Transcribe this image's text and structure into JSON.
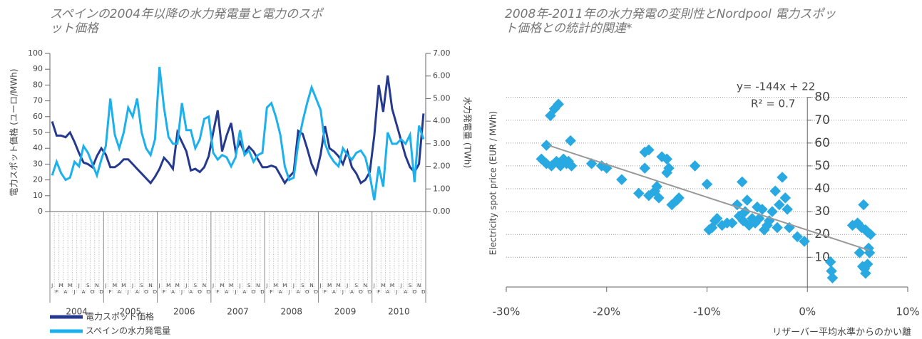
{
  "chart_data": [
    {
      "type": "line",
      "title": "スペインの2004年以降の水力発電量と電力のスポット価格",
      "ylabel": "電力スポット価格 (ユーロ/MWh)",
      "y2label": "水力発電量 (TWh)",
      "categories": [
        "J",
        "F",
        "M",
        "A",
        "M",
        "J",
        "J",
        "A",
        "S",
        "O",
        "N",
        "D",
        "J",
        "F",
        "M",
        "A",
        "M",
        "J",
        "J",
        "A",
        "S",
        "O",
        "N",
        "D",
        "J",
        "F",
        "M",
        "A",
        "M",
        "J",
        "J",
        "A",
        "S",
        "O",
        "N",
        "D",
        "J",
        "F",
        "M",
        "A",
        "M",
        "J",
        "J",
        "A",
        "S",
        "O",
        "N",
        "D",
        "J",
        "F",
        "M",
        "A",
        "M",
        "J",
        "J",
        "A",
        "S",
        "O",
        "N",
        "D",
        "J",
        "F",
        "M",
        "A",
        "M",
        "J",
        "J",
        "A",
        "S",
        "O",
        "N",
        "D",
        "J",
        "F",
        "M",
        "A",
        "M",
        "J",
        "J",
        "A",
        "S",
        "O",
        "N",
        "D"
      ],
      "years": [
        "2004",
        "2005",
        "2006",
        "2007",
        "2008",
        "2009",
        "2010"
      ],
      "ylim": [
        0,
        100
      ],
      "yticks": [
        0,
        10,
        20,
        30,
        40,
        50,
        60,
        70,
        80,
        90,
        100
      ],
      "y2lim": [
        0,
        7
      ],
      "y2ticks": [
        {
          "value": 0,
          "label": "0.00"
        },
        {
          "value": 1,
          "label": "1.00"
        },
        {
          "value": 2,
          "label": "2.00"
        },
        {
          "value": 3,
          "label": "3.00"
        },
        {
          "value": 4,
          "label": "4.00"
        },
        {
          "value": 5,
          "label": "5.00"
        },
        {
          "value": 6,
          "label": "6.00"
        },
        {
          "value": 7,
          "label": "7.00"
        }
      ],
      "series": [
        {
          "name": "電力スポット価格",
          "color": "#253a8e",
          "axis": "y",
          "values": [
            57,
            48,
            48,
            47,
            50,
            44,
            37,
            31,
            30,
            28,
            35,
            40,
            36,
            28,
            28,
            30,
            33,
            33,
            30,
            27,
            24,
            21,
            18,
            22,
            27,
            34,
            31,
            27,
            50,
            44,
            38,
            26,
            27,
            25,
            28,
            35,
            50,
            64,
            38,
            48,
            56,
            38,
            44,
            37,
            41,
            38,
            33,
            28,
            28,
            29,
            28,
            23,
            18,
            22,
            25,
            51,
            49,
            40,
            30,
            24,
            36,
            54,
            40,
            38,
            35,
            30,
            38,
            28,
            24,
            18,
            20,
            25,
            48,
            80,
            63,
            86,
            65,
            55,
            45,
            35,
            28,
            25,
            30,
            62
          ]
        },
        {
          "name": "スペインの水力発電量",
          "color": "#1cb0ec",
          "axis": "y2",
          "values": [
            1.6,
            2.2,
            1.7,
            1.4,
            1.5,
            2.2,
            2.0,
            2.9,
            2.6,
            2.1,
            1.6,
            2.3,
            2.9,
            5.0,
            3.4,
            2.8,
            3.5,
            4.6,
            4.2,
            5.0,
            3.5,
            2.8,
            2.5,
            3.2,
            6.4,
            4.6,
            3.3,
            3.0,
            3.0,
            4.8,
            3.6,
            3.6,
            2.8,
            3.2,
            4.1,
            4.2,
            2.6,
            2.3,
            2.5,
            2.4,
            2.0,
            2.4,
            3.6,
            2.5,
            2.7,
            2.2,
            2.5,
            2.6,
            4.6,
            4.8,
            4.2,
            3.4,
            2.0,
            1.4,
            1.5,
            3.0,
            4.0,
            4.8,
            5.5,
            5.0,
            4.5,
            3.0,
            2.5,
            2.2,
            2.0,
            2.8,
            2.5,
            2.3,
            2.6,
            2.7,
            2.4,
            1.6,
            0.5,
            2.0,
            1.1,
            3.5,
            3.0,
            3.0,
            3.2,
            3.0,
            3.4,
            1.3,
            3.8,
            3.2
          ]
        }
      ]
    },
    {
      "type": "scatter",
      "title": "2008年-2011年の水力発電の変則性とNordpool 電力スポット価格との統計的関連*",
      "ylabel": "Electricity spot price (EUR / MWh)",
      "xlabel": "リザーバー平均水準からのかい離",
      "annotations": [
        "y= -144x + 22",
        "R² = 0.7"
      ],
      "xlim": [
        -30,
        10
      ],
      "xticks": [
        {
          "value": -30,
          "label": "-30%"
        },
        {
          "value": -20,
          "label": "-20%"
        },
        {
          "value": -10,
          "label": "-10%"
        },
        {
          "value": 0,
          "label": "0%"
        },
        {
          "value": 10,
          "label": "10%"
        }
      ],
      "ylim": [
        -3,
        88
      ],
      "yticks": [
        10,
        20,
        30,
        40,
        50,
        60,
        70,
        80
      ],
      "grid": true,
      "color": "#29a9e1",
      "x": [
        -24.8,
        -25.2,
        -25.6,
        -26,
        -23.6,
        -26.5,
        -26,
        -25.5,
        -25,
        -24.6,
        -24.3,
        -24,
        -23.5,
        -23.8,
        -21.5,
        -20.5,
        -20,
        -18.5,
        -16.8,
        -16.2,
        -15.8,
        -16.2,
        -15.8,
        -15.2,
        -15,
        -14.8,
        -14.5,
        -14,
        -14,
        -13.8,
        -13.5,
        -13,
        -12.8,
        -11.2,
        -10,
        -9.8,
        -9.5,
        -9.2,
        -9,
        -8.5,
        -8,
        -7.5,
        -7,
        -6.8,
        -6.5,
        -6.4,
        -6.2,
        -6,
        -5.8,
        -5.5,
        -5.2,
        -5,
        -4.8,
        -4.5,
        -4.3,
        -4,
        -3.8,
        -3.5,
        -3.2,
        -3,
        -2.8,
        -2.5,
        -2.2,
        -2,
        -1.8,
        -1,
        -0.3,
        2.3,
        2.4,
        2.5,
        4.5,
        5,
        5.2,
        5.4,
        5.5,
        5.6,
        5.8,
        5.8,
        6,
        6.1,
        6.2,
        6,
        6.3,
        5.7
      ],
      "values": [
        77,
        75,
        72,
        59,
        61,
        53,
        51,
        50,
        52,
        50,
        53,
        51,
        50,
        52,
        51,
        50,
        49,
        44,
        38,
        56,
        57,
        49,
        37,
        39,
        41,
        36,
        54,
        53,
        47,
        49,
        33,
        35,
        36,
        50,
        42,
        22,
        23,
        26,
        27,
        24,
        25,
        25,
        33,
        28,
        43,
        26,
        30,
        35,
        24,
        27,
        25,
        32,
        27,
        31,
        22,
        24,
        26,
        30,
        39,
        23,
        33,
        45,
        36,
        31,
        23,
        19,
        17,
        8,
        4,
        1,
        24,
        25,
        12,
        23,
        6,
        33,
        3,
        22,
        21,
        14,
        12,
        7,
        20,
        5
      ],
      "trendline": {
        "color": "#999999",
        "x": [
          -25.8,
          6.2
        ],
        "values": [
          59,
          13
        ]
      }
    }
  ]
}
